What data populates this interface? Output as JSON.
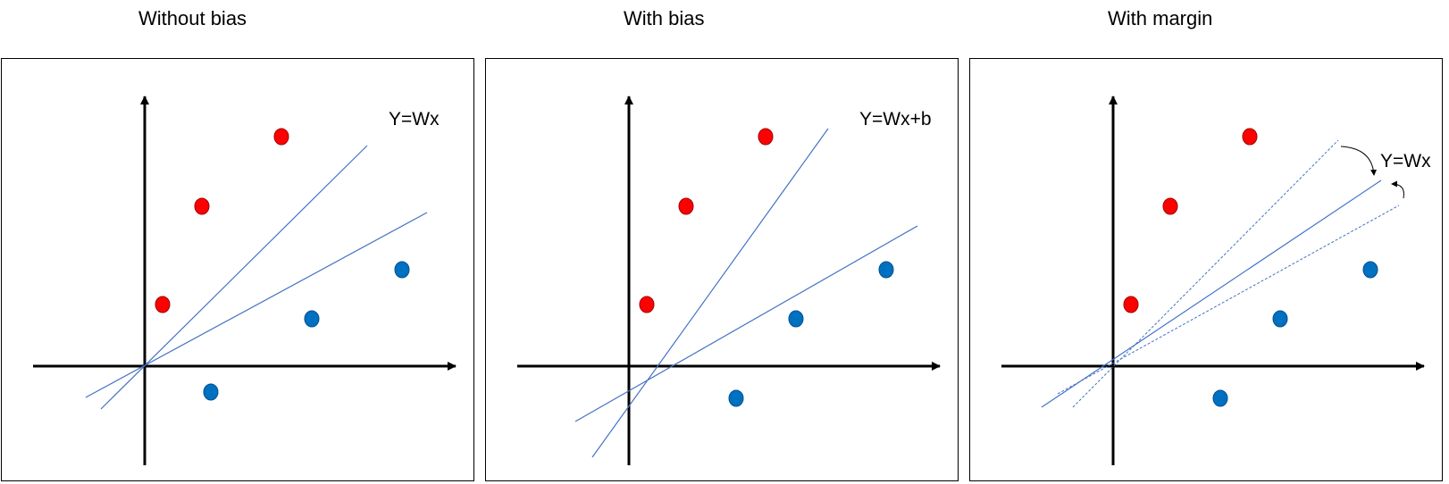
{
  "panels": [
    {
      "title": "Without bias",
      "equation": "Y=Wx"
    },
    {
      "title": "With bias",
      "equation": "Y=Wx+b"
    },
    {
      "title": "With margin",
      "equation": "Y=Wx"
    }
  ],
  "colors": {
    "axis": "#000000",
    "line": "#4472c4",
    "positive_point": "#ff0000",
    "negative_point": "#0070c0"
  }
}
